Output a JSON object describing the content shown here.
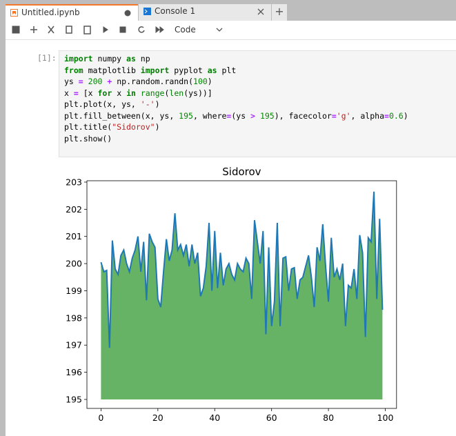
{
  "tabs": [
    {
      "title": "Untitled.ipynb"
    },
    {
      "title": "Console 1"
    }
  ],
  "toolbar": {
    "cell_type": "Code"
  },
  "cell": {
    "prompt": "[1]:",
    "code": [
      [
        {
          "t": "import",
          "k": "kw"
        },
        " numpy ",
        {
          "t": "as",
          "k": "kw"
        },
        " np"
      ],
      [
        {
          "t": "from",
          "k": "kw"
        },
        " matplotlib ",
        {
          "t": "import",
          "k": "kw"
        },
        " pyplot ",
        {
          "t": "as",
          "k": "kw"
        },
        " plt"
      ],
      [
        "ys ",
        {
          "t": "=",
          "k": "op"
        },
        " ",
        {
          "t": "200",
          "k": "num"
        },
        " ",
        {
          "t": "+",
          "k": "op"
        },
        " np.random.randn(",
        {
          "t": "100",
          "k": "num"
        },
        ")"
      ],
      [
        "x ",
        {
          "t": "=",
          "k": "op"
        },
        " [x ",
        {
          "t": "for",
          "k": "kw"
        },
        " x ",
        {
          "t": "in",
          "k": "kw"
        },
        " ",
        {
          "t": "range",
          "k": "bi"
        },
        "(",
        {
          "t": "len",
          "k": "bi"
        },
        "(ys))]"
      ],
      [
        "plt.plot(x, ys, ",
        {
          "t": "'-'",
          "k": "str"
        },
        ")"
      ],
      [
        "plt.fill_between(x, ys, ",
        {
          "t": "195",
          "k": "num"
        },
        ", where",
        {
          "t": "=",
          "k": "op"
        },
        "(ys ",
        {
          "t": ">",
          "k": "op"
        },
        " ",
        {
          "t": "195",
          "k": "num"
        },
        "), facecolor",
        {
          "t": "=",
          "k": "op"
        },
        {
          "t": "'g'",
          "k": "str"
        },
        ", alpha",
        {
          "t": "=",
          "k": "op"
        },
        {
          "t": "0.6",
          "k": "num"
        },
        ")"
      ],
      [
        "plt.title(",
        {
          "t": "\"Sidorov\"",
          "k": "str"
        },
        ")"
      ],
      [
        "plt.show()"
      ]
    ]
  },
  "chart_data": {
    "type": "line",
    "title": "Sidorov",
    "x": [
      0,
      1,
      2,
      3,
      4,
      5,
      6,
      7,
      8,
      9,
      10,
      11,
      12,
      13,
      14,
      15,
      16,
      17,
      18,
      19,
      20,
      21,
      22,
      23,
      24,
      25,
      26,
      27,
      28,
      29,
      30,
      31,
      32,
      33,
      34,
      35,
      36,
      37,
      38,
      39,
      40,
      41,
      42,
      43,
      44,
      45,
      46,
      47,
      48,
      49,
      50,
      51,
      52,
      53,
      54,
      55,
      56,
      57,
      58,
      59,
      60,
      61,
      62,
      63,
      64,
      65,
      66,
      67,
      68,
      69,
      70,
      71,
      72,
      73,
      74,
      75,
      76,
      77,
      78,
      79,
      80,
      81,
      82,
      83,
      84,
      85,
      86,
      87,
      88,
      89,
      90,
      91,
      92,
      93,
      94,
      95,
      96,
      97,
      98,
      99
    ],
    "values": [
      200.05,
      199.7,
      199.75,
      196.9,
      200.85,
      199.8,
      199.6,
      200.3,
      200.5,
      200.0,
      199.7,
      200.2,
      200.5,
      201.0,
      199.7,
      200.8,
      198.65,
      201.1,
      200.8,
      200.6,
      198.7,
      198.4,
      199.7,
      200.9,
      200.1,
      200.5,
      201.85,
      200.5,
      200.7,
      200.3,
      200.7,
      199.9,
      200.7,
      200.0,
      200.4,
      198.8,
      199.1,
      199.9,
      201.5,
      199.0,
      201.2,
      199.1,
      200.4,
      199.2,
      199.8,
      200.0,
      199.6,
      199.4,
      200.0,
      199.8,
      199.7,
      200.2,
      200.0,
      198.7,
      201.6,
      200.8,
      200.0,
      201.2,
      197.4,
      200.6,
      197.7,
      198.6,
      201.5,
      197.7,
      200.2,
      200.25,
      199.0,
      199.8,
      199.85,
      198.7,
      199.4,
      199.5,
      199.9,
      200.3,
      199.5,
      198.4,
      200.6,
      200.1,
      201.45,
      199.9,
      198.6,
      200.95,
      199.5,
      199.8,
      199.4,
      200.0,
      197.7,
      199.2,
      199.1,
      199.8,
      198.7,
      201.05,
      200.4,
      197.3,
      200.95,
      200.8,
      202.65,
      198.7,
      201.65,
      198.3
    ],
    "color": "#1f77b4",
    "fill_color": "#008000",
    "fill_alpha": 0.6,
    "fill_to": 195,
    "xlim": [
      -4.95,
      103.95
    ],
    "ylim": [
      194.67,
      203.05
    ],
    "xticks": [
      0,
      20,
      40,
      60,
      80,
      100
    ],
    "yticks": [
      195,
      196,
      197,
      198,
      199,
      200,
      201,
      202,
      203
    ]
  }
}
